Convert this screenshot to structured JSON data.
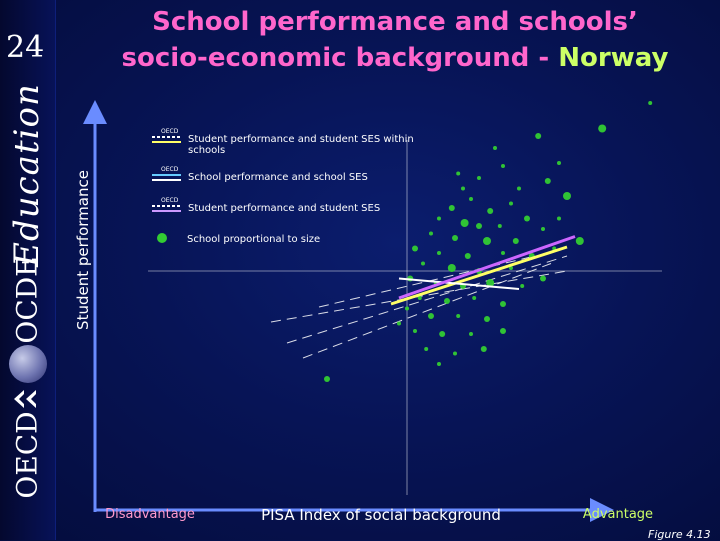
{
  "slide": {
    "number": "24",
    "title_main": "School performance and schools’ socio-economic background - ",
    "title_country": "Norway",
    "figure_label": "Figure 4.13"
  },
  "branding": {
    "education_word": "Education",
    "ocde_word": "OCDE",
    "oecd_word": "OECD"
  },
  "colors": {
    "background": "#071456",
    "axis": "#6a8cff",
    "school_dots": "#33cc33",
    "line_within_schools": "#ffff66",
    "line_school_ses": "#66ccff",
    "line_student_ses": "#cc66ff",
    "title": "#ff66cc",
    "country": "#ccff66"
  },
  "chart_data": {
    "type": "scatter",
    "title": "School performance and schools’ socio-economic background - Norway",
    "xlabel": "PISA Index of social background",
    "ylabel": "Student performance",
    "x_low_label": "Disadvantage",
    "x_high_label": "Advantage",
    "xlim": [
      -1.6,
      1.6
    ],
    "ylim": [
      -1.6,
      1.6
    ],
    "legend": [
      {
        "tag": "OECD",
        "label": "Student performance and student SES within schools",
        "style": "dashed-yellow"
      },
      {
        "tag": "OECD",
        "label": "School performance and school SES",
        "style": "solid-blue"
      },
      {
        "tag": "OECD",
        "label": "Student performance and student SES",
        "style": "dashed-purple"
      },
      {
        "tag": "",
        "label": "School proportional to size",
        "style": "dot"
      }
    ],
    "series": [
      {
        "name": "Student performance and student SES within schools",
        "x": [
          -0.1,
          1.0
        ],
        "y": [
          -0.22,
          0.16
        ]
      },
      {
        "name": "School performance and school SES",
        "x": [
          -0.05,
          0.7
        ],
        "y": [
          -0.05,
          -0.12
        ]
      },
      {
        "name": "Student performance and student SES",
        "x": [
          -0.05,
          1.05
        ],
        "y": [
          -0.18,
          0.23
        ]
      }
    ],
    "oecd_lines": [
      {
        "x": [
          -0.85,
          1.0
        ],
        "y": [
          -0.34,
          0.0
        ]
      },
      {
        "x": [
          -0.75,
          1.0
        ],
        "y": [
          -0.48,
          0.1
        ]
      },
      {
        "x": [
          -0.65,
          0.9
        ],
        "y": [
          -0.58,
          0.05
        ]
      },
      {
        "x": [
          -0.55,
          0.8
        ],
        "y": [
          -0.24,
          0.1
        ]
      }
    ],
    "schools": [
      {
        "x": 1.52,
        "y": 1.12,
        "size": 2
      },
      {
        "x": 1.22,
        "y": 0.95,
        "size": 4
      },
      {
        "x": 0.82,
        "y": 0.9,
        "size": 3
      },
      {
        "x": 0.55,
        "y": 0.82,
        "size": 2
      },
      {
        "x": 0.95,
        "y": 0.72,
        "size": 2
      },
      {
        "x": 0.6,
        "y": 0.7,
        "size": 2
      },
      {
        "x": 0.88,
        "y": 0.6,
        "size": 3
      },
      {
        "x": 0.45,
        "y": 0.62,
        "size": 2
      },
      {
        "x": 0.35,
        "y": 0.55,
        "size": 2
      },
      {
        "x": 1.0,
        "y": 0.5,
        "size": 4
      },
      {
        "x": 0.28,
        "y": 0.42,
        "size": 3
      },
      {
        "x": 0.4,
        "y": 0.48,
        "size": 2
      },
      {
        "x": 0.52,
        "y": 0.4,
        "size": 3
      },
      {
        "x": 0.65,
        "y": 0.45,
        "size": 2
      },
      {
        "x": 0.75,
        "y": 0.35,
        "size": 3
      },
      {
        "x": 0.2,
        "y": 0.35,
        "size": 2
      },
      {
        "x": 0.36,
        "y": 0.32,
        "size": 4
      },
      {
        "x": 0.45,
        "y": 0.3,
        "size": 3
      },
      {
        "x": 0.58,
        "y": 0.3,
        "size": 2
      },
      {
        "x": 0.85,
        "y": 0.28,
        "size": 2
      },
      {
        "x": 0.15,
        "y": 0.25,
        "size": 2
      },
      {
        "x": 0.3,
        "y": 0.22,
        "size": 3
      },
      {
        "x": 0.5,
        "y": 0.2,
        "size": 4
      },
      {
        "x": 0.68,
        "y": 0.2,
        "size": 3
      },
      {
        "x": 1.08,
        "y": 0.2,
        "size": 4
      },
      {
        "x": 0.05,
        "y": 0.15,
        "size": 3
      },
      {
        "x": 0.2,
        "y": 0.12,
        "size": 2
      },
      {
        "x": 0.38,
        "y": 0.1,
        "size": 3
      },
      {
        "x": 0.6,
        "y": 0.12,
        "size": 2
      },
      {
        "x": 0.78,
        "y": 0.1,
        "size": 3
      },
      {
        "x": 0.92,
        "y": 0.15,
        "size": 2
      },
      {
        "x": 0.1,
        "y": 0.05,
        "size": 2
      },
      {
        "x": 0.28,
        "y": 0.02,
        "size": 4
      },
      {
        "x": 0.45,
        "y": 0.0,
        "size": 3
      },
      {
        "x": 0.65,
        "y": 0.02,
        "size": 2
      },
      {
        "x": 0.02,
        "y": -0.05,
        "size": 3
      },
      {
        "x": 0.18,
        "y": -0.08,
        "size": 2
      },
      {
        "x": 0.35,
        "y": -0.1,
        "size": 3
      },
      {
        "x": 0.52,
        "y": -0.08,
        "size": 4
      },
      {
        "x": 0.72,
        "y": -0.1,
        "size": 2
      },
      {
        "x": 0.85,
        "y": -0.05,
        "size": 3
      },
      {
        "x": 0.08,
        "y": -0.18,
        "size": 2
      },
      {
        "x": 0.25,
        "y": -0.2,
        "size": 3
      },
      {
        "x": 0.42,
        "y": -0.18,
        "size": 2
      },
      {
        "x": 0.6,
        "y": -0.22,
        "size": 3
      },
      {
        "x": 0.0,
        "y": -0.25,
        "size": 2
      },
      {
        "x": 0.15,
        "y": -0.3,
        "size": 3
      },
      {
        "x": 0.32,
        "y": -0.3,
        "size": 2
      },
      {
        "x": 0.5,
        "y": -0.32,
        "size": 3
      },
      {
        "x": 0.05,
        "y": -0.4,
        "size": 2
      },
      {
        "x": 0.22,
        "y": -0.42,
        "size": 3
      },
      {
        "x": 0.4,
        "y": -0.42,
        "size": 2
      },
      {
        "x": 0.6,
        "y": -0.4,
        "size": 3
      },
      {
        "x": 0.12,
        "y": -0.52,
        "size": 2
      },
      {
        "x": 0.3,
        "y": -0.55,
        "size": 2
      },
      {
        "x": 0.48,
        "y": -0.52,
        "size": 3
      },
      {
        "x": 0.2,
        "y": -0.62,
        "size": 2
      },
      {
        "x": -0.05,
        "y": -0.35,
        "size": 2
      },
      {
        "x": -0.5,
        "y": -0.72,
        "size": 3
      },
      {
        "x": 0.7,
        "y": 0.55,
        "size": 2
      },
      {
        "x": 0.32,
        "y": 0.65,
        "size": 2
      },
      {
        "x": 0.95,
        "y": 0.35,
        "size": 2
      }
    ]
  }
}
